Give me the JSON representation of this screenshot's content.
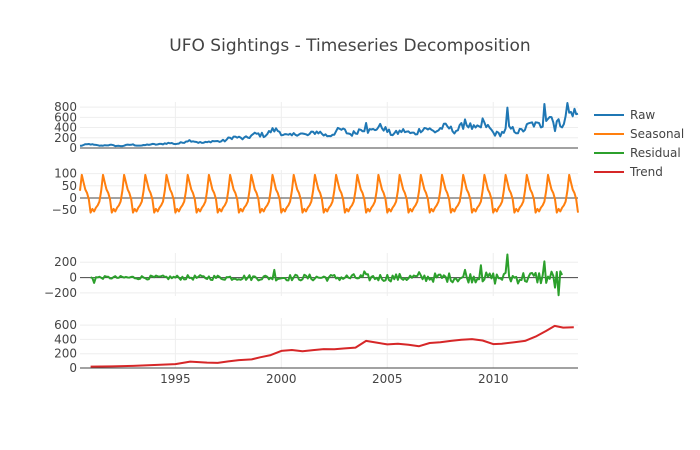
{
  "chart_data": {
    "type": "line",
    "title": "UFO Sightings - Timeseries Decomposition",
    "legend_position": "right",
    "x_range": [
      1990.5,
      2014.0
    ],
    "x_ticks": [
      1995,
      2000,
      2005,
      2010
    ],
    "x_tick_labels": [
      "1995",
      "2000",
      "2005",
      "2010"
    ],
    "grid": true,
    "colors": {
      "Raw": "#1f77b4",
      "Seasonal": "#ff7f0e",
      "Residual": "#2ca02c",
      "Trend": "#d62728"
    },
    "panels": [
      {
        "series_name": "Raw",
        "ylim": [
          0,
          900
        ],
        "y_ticks": [
          0,
          200,
          400,
          600,
          800
        ],
        "y_tick_labels": [
          "0",
          "200",
          "400",
          "600",
          "800"
        ],
        "anchors": [
          [
            1990.5,
            40
          ],
          [
            1991.0,
            75
          ],
          [
            1991.5,
            45
          ],
          [
            1992.0,
            55
          ],
          [
            1992.5,
            40
          ],
          [
            1993.0,
            65
          ],
          [
            1993.5,
            50
          ],
          [
            1994.0,
            70
          ],
          [
            1994.5,
            90
          ],
          [
            1995.0,
            80
          ],
          [
            1995.5,
            140
          ],
          [
            1996.0,
            120
          ],
          [
            1996.5,
            110
          ],
          [
            1997.0,
            130
          ],
          [
            1997.5,
            180
          ],
          [
            1998.0,
            200
          ],
          [
            1998.5,
            220
          ],
          [
            1999.0,
            260
          ],
          [
            1999.5,
            330
          ],
          [
            2000.0,
            300
          ],
          [
            2000.5,
            240
          ],
          [
            2001.0,
            270
          ],
          [
            2001.5,
            300
          ],
          [
            2002.0,
            260
          ],
          [
            2002.5,
            300
          ],
          [
            2003.0,
            330
          ],
          [
            2003.5,
            300
          ],
          [
            2004.0,
            360
          ],
          [
            2004.5,
            400
          ],
          [
            2005.0,
            330
          ],
          [
            2005.5,
            300
          ],
          [
            2006.0,
            300
          ],
          [
            2006.5,
            340
          ],
          [
            2007.0,
            360
          ],
          [
            2007.5,
            380
          ],
          [
            2008.0,
            370
          ],
          [
            2008.5,
            420
          ],
          [
            2009.0,
            400
          ],
          [
            2009.5,
            440
          ],
          [
            2010.0,
            300
          ],
          [
            2010.5,
            320
          ],
          [
            2011.0,
            350
          ],
          [
            2011.5,
            380
          ],
          [
            2012.0,
            450
          ],
          [
            2012.5,
            580
          ],
          [
            2013.0,
            500
          ],
          [
            2013.5,
            620
          ],
          [
            2014.0,
            640
          ]
        ],
        "spikes": [
          [
            1999.6,
            390
          ],
          [
            2004.0,
            490
          ],
          [
            2008.7,
            560
          ],
          [
            2009.5,
            580
          ],
          [
            2010.7,
            790
          ],
          [
            2012.4,
            860
          ],
          [
            2013.5,
            880
          ],
          [
            2012.9,
            330
          ]
        ]
      },
      {
        "series_name": "Seasonal",
        "ylim": [
          -70,
          115
        ],
        "y_ticks": [
          -50,
          0,
          50,
          100
        ],
        "y_tick_labels": [
          "−50",
          "0",
          "50",
          "100"
        ],
        "monthly_pattern": [
          -45,
          -55,
          -40,
          -30,
          -15,
          30,
          95,
          65,
          35,
          20,
          -5,
          -60
        ]
      },
      {
        "series_name": "Residual",
        "ylim": [
          -240,
          320
        ],
        "y_ticks": [
          -200,
          0,
          200
        ],
        "y_tick_labels": [
          "−200",
          "0",
          "200"
        ],
        "envelope": [
          [
            1990.5,
            15
          ],
          [
            1995.0,
            30
          ],
          [
            2000.0,
            40
          ],
          [
            2005.0,
            50
          ],
          [
            2010.0,
            70
          ],
          [
            2013.0,
            100
          ]
        ],
        "spikes": [
          [
            1991.2,
            -70
          ],
          [
            1999.7,
            100
          ],
          [
            2003.9,
            80
          ],
          [
            2006.5,
            70
          ],
          [
            2008.7,
            100
          ],
          [
            2009.4,
            160
          ],
          [
            2010.1,
            -80
          ],
          [
            2010.7,
            300
          ],
          [
            2012.4,
            210
          ],
          [
            2012.9,
            -130
          ],
          [
            2013.1,
            -230
          ]
        ]
      },
      {
        "series_name": "Trend",
        "ylim": [
          0,
          700
        ],
        "y_ticks": [
          0,
          200,
          400,
          600
        ],
        "y_tick_labels": [
          "0",
          "200",
          "400",
          "600"
        ],
        "points": [
          [
            1991.0,
            20
          ],
          [
            1992.0,
            22
          ],
          [
            1993.0,
            30
          ],
          [
            1994.0,
            42
          ],
          [
            1995.0,
            55
          ],
          [
            1995.7,
            90
          ],
          [
            1996.5,
            75
          ],
          [
            1997.0,
            72
          ],
          [
            1997.5,
            92
          ],
          [
            1998.0,
            110
          ],
          [
            1998.6,
            120
          ],
          [
            1999.0,
            150
          ],
          [
            1999.5,
            180
          ],
          [
            2000.0,
            240
          ],
          [
            2000.5,
            252
          ],
          [
            2001.0,
            235
          ],
          [
            2001.5,
            250
          ],
          [
            2002.0,
            265
          ],
          [
            2002.5,
            262
          ],
          [
            2003.0,
            275
          ],
          [
            2003.5,
            285
          ],
          [
            2004.0,
            380
          ],
          [
            2004.5,
            355
          ],
          [
            2005.0,
            330
          ],
          [
            2005.5,
            340
          ],
          [
            2006.0,
            325
          ],
          [
            2006.5,
            305
          ],
          [
            2007.0,
            350
          ],
          [
            2007.5,
            360
          ],
          [
            2008.0,
            380
          ],
          [
            2008.5,
            395
          ],
          [
            2009.0,
            405
          ],
          [
            2009.5,
            385
          ],
          [
            2010.0,
            335
          ],
          [
            2010.4,
            340
          ],
          [
            2011.0,
            360
          ],
          [
            2011.5,
            380
          ],
          [
            2012.0,
            440
          ],
          [
            2012.5,
            520
          ],
          [
            2012.9,
            590
          ],
          [
            2013.3,
            565
          ],
          [
            2013.8,
            570
          ]
        ]
      }
    ]
  }
}
